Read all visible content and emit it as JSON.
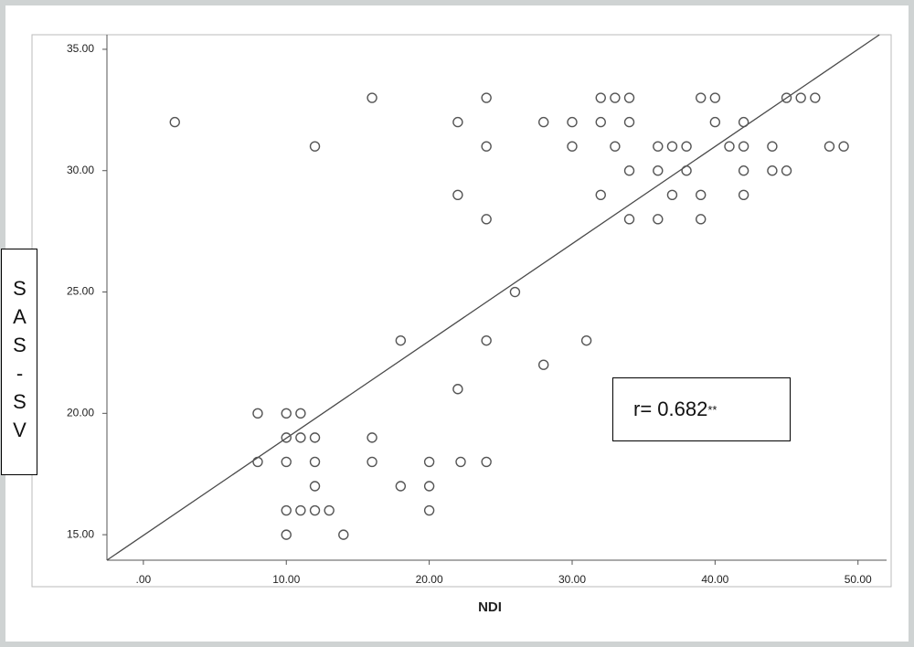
{
  "chart_data": {
    "type": "scatter",
    "x_label": "NDI",
    "y_label": "SAS-SV",
    "annotation": "r= 0.682",
    "annotation_superscript": "**",
    "color": "#555555",
    "x": [
      16,
      24,
      32,
      33,
      34,
      39,
      40,
      45,
      46,
      47,
      2.2,
      22,
      28,
      30,
      32,
      34,
      40,
      42,
      12,
      24,
      30,
      33,
      36,
      37,
      38,
      41,
      42,
      44,
      48,
      49,
      34,
      36,
      38,
      42,
      44,
      45,
      22,
      32,
      37,
      39,
      42,
      24,
      34,
      36,
      39,
      26,
      18,
      24,
      31,
      28,
      22,
      8,
      10,
      11,
      10,
      11,
      12,
      16,
      8,
      10,
      12,
      16,
      20,
      22.2,
      24,
      12,
      18,
      20,
      10,
      11,
      12,
      13,
      20,
      10,
      14
    ],
    "values": [
      33,
      33,
      33,
      33,
      33,
      33,
      33,
      33,
      33,
      33,
      32,
      32,
      32,
      32,
      32,
      32,
      32,
      32,
      31,
      31,
      31,
      31,
      31,
      31,
      31,
      31,
      31,
      31,
      31,
      31,
      30,
      30,
      30,
      30,
      30,
      30,
      29,
      29,
      29,
      29,
      29,
      28,
      28,
      28,
      28,
      25,
      23,
      23,
      23,
      22,
      21,
      20,
      20,
      20,
      19,
      19,
      19,
      19,
      18,
      18,
      18,
      18,
      18,
      18,
      18,
      17,
      17,
      17,
      16,
      16,
      16,
      16,
      16,
      15,
      15
    ],
    "fit_line": {
      "x": [
        -2.55,
        51.5
      ],
      "y": [
        13.95,
        35.6
      ]
    },
    "xlim": [
      -2.55,
      52
    ],
    "ylim": [
      13.95,
      35.6
    ],
    "xticks": [
      {
        "value": 0,
        "label": ".00"
      },
      {
        "value": 10,
        "label": "10.00"
      },
      {
        "value": 20,
        "label": "20.00"
      },
      {
        "value": 30,
        "label": "30.00"
      },
      {
        "value": 40,
        "label": "40.00"
      },
      {
        "value": 50,
        "label": "50.00"
      }
    ],
    "yticks": [
      {
        "value": 15,
        "label": "15.00"
      },
      {
        "value": 20,
        "label": "20.00"
      },
      {
        "value": 25,
        "label": "25.00"
      },
      {
        "value": 30,
        "label": "30.00"
      },
      {
        "value": 35,
        "label": "35.00"
      }
    ]
  }
}
